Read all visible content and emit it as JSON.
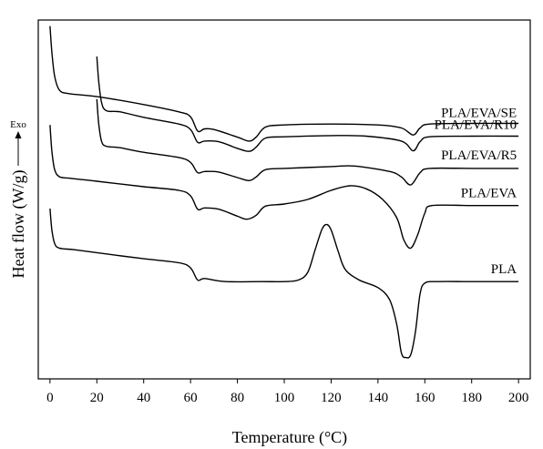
{
  "chart_data": {
    "type": "line",
    "title": "",
    "xlabel": "Temperature (°C)",
    "ylabel": "Heat flow (W/g)",
    "exo_label": "Exo",
    "xlim": [
      -5,
      205
    ],
    "xticks": [
      0,
      20,
      40,
      60,
      80,
      100,
      120,
      140,
      160,
      180,
      200
    ],
    "y_ticks_shown": false,
    "grid": false,
    "legend": "inline labels right of each curve",
    "series": [
      {
        "name": "PLA/EVA/SE",
        "points": [
          [
            0,
            7.2
          ],
          [
            0.8,
            6.35
          ],
          [
            2,
            5.55
          ],
          [
            4,
            5.1
          ],
          [
            8,
            4.98
          ],
          [
            20,
            4.88
          ],
          [
            40,
            4.62
          ],
          [
            55,
            4.38
          ],
          [
            60,
            4.22
          ],
          [
            63,
            3.75
          ],
          [
            66,
            3.82
          ],
          [
            70,
            3.8
          ],
          [
            80,
            3.55
          ],
          [
            85,
            3.42
          ],
          [
            88,
            3.55
          ],
          [
            92,
            3.88
          ],
          [
            100,
            3.95
          ],
          [
            120,
            3.98
          ],
          [
            140,
            3.95
          ],
          [
            150,
            3.85
          ],
          [
            155,
            3.62
          ],
          [
            158,
            3.85
          ],
          [
            162,
            3.98
          ],
          [
            180,
            4.0
          ],
          [
            200,
            4.0
          ]
        ]
      },
      {
        "name": "PLA/EVA/R10",
        "points": [
          [
            20,
            6.2
          ],
          [
            20.8,
            5.4
          ],
          [
            22,
            4.7
          ],
          [
            24,
            4.42
          ],
          [
            30,
            4.38
          ],
          [
            40,
            4.2
          ],
          [
            55,
            3.98
          ],
          [
            60,
            3.8
          ],
          [
            63,
            3.38
          ],
          [
            66,
            3.42
          ],
          [
            72,
            3.4
          ],
          [
            80,
            3.18
          ],
          [
            85,
            3.08
          ],
          [
            88,
            3.22
          ],
          [
            92,
            3.52
          ],
          [
            100,
            3.56
          ],
          [
            120,
            3.6
          ],
          [
            135,
            3.58
          ],
          [
            150,
            3.42
          ],
          [
            155,
            3.1
          ],
          [
            158,
            3.4
          ],
          [
            162,
            3.56
          ],
          [
            180,
            3.58
          ],
          [
            200,
            3.58
          ]
        ]
      },
      {
        "name": "PLA/EVA/R5",
        "points": [
          [
            20,
            4.8
          ],
          [
            20.8,
            4.0
          ],
          [
            22,
            3.42
          ],
          [
            24,
            3.25
          ],
          [
            30,
            3.2
          ],
          [
            40,
            3.05
          ],
          [
            55,
            2.88
          ],
          [
            60,
            2.72
          ],
          [
            63,
            2.38
          ],
          [
            66,
            2.42
          ],
          [
            72,
            2.4
          ],
          [
            80,
            2.22
          ],
          [
            85,
            2.12
          ],
          [
            88,
            2.24
          ],
          [
            92,
            2.48
          ],
          [
            100,
            2.52
          ],
          [
            120,
            2.58
          ],
          [
            130,
            2.6
          ],
          [
            145,
            2.42
          ],
          [
            150,
            2.24
          ],
          [
            154,
            1.98
          ],
          [
            158,
            2.38
          ],
          [
            162,
            2.52
          ],
          [
            180,
            2.52
          ],
          [
            200,
            2.52
          ]
        ]
      },
      {
        "name": "PLA/EVA",
        "points": [
          [
            0,
            3.95
          ],
          [
            0.8,
            3.1
          ],
          [
            2,
            2.48
          ],
          [
            4,
            2.25
          ],
          [
            8,
            2.2
          ],
          [
            20,
            2.1
          ],
          [
            40,
            1.92
          ],
          [
            55,
            1.8
          ],
          [
            60,
            1.62
          ],
          [
            63,
            1.18
          ],
          [
            66,
            1.22
          ],
          [
            72,
            1.18
          ],
          [
            80,
            0.95
          ],
          [
            84,
            0.85
          ],
          [
            88,
            0.98
          ],
          [
            92,
            1.28
          ],
          [
            100,
            1.35
          ],
          [
            110,
            1.5
          ],
          [
            120,
            1.8
          ],
          [
            128,
            1.95
          ],
          [
            135,
            1.85
          ],
          [
            142,
            1.5
          ],
          [
            148,
            0.9
          ],
          [
            151,
            0.18
          ],
          [
            154,
            -0.1
          ],
          [
            157,
            0.35
          ],
          [
            160,
            1.05
          ],
          [
            163,
            1.3
          ],
          [
            180,
            1.3
          ],
          [
            200,
            1.3
          ]
        ]
      },
      {
        "name": "PLA",
        "points": [
          [
            0,
            1.2
          ],
          [
            0.8,
            0.5
          ],
          [
            2,
            0.05
          ],
          [
            4,
            -0.1
          ],
          [
            10,
            -0.15
          ],
          [
            20,
            -0.25
          ],
          [
            40,
            -0.45
          ],
          [
            55,
            -0.58
          ],
          [
            60,
            -0.75
          ],
          [
            63,
            -1.15
          ],
          [
            66,
            -1.1
          ],
          [
            75,
            -1.2
          ],
          [
            90,
            -1.2
          ],
          [
            100,
            -1.2
          ],
          [
            106,
            -1.15
          ],
          [
            110,
            -0.9
          ],
          [
            113,
            -0.2
          ],
          [
            116,
            0.5
          ],
          [
            118,
            0.68
          ],
          [
            120,
            0.5
          ],
          [
            123,
            -0.2
          ],
          [
            126,
            -0.8
          ],
          [
            132,
            -1.15
          ],
          [
            140,
            -1.4
          ],
          [
            145,
            -1.8
          ],
          [
            148,
            -2.6
          ],
          [
            150,
            -3.55
          ],
          [
            152,
            -3.7
          ],
          [
            154,
            -3.6
          ],
          [
            156,
            -2.85
          ],
          [
            158,
            -1.6
          ],
          [
            160,
            -1.25
          ],
          [
            165,
            -1.2
          ],
          [
            180,
            -1.2
          ],
          [
            200,
            -1.2
          ]
        ]
      }
    ]
  }
}
